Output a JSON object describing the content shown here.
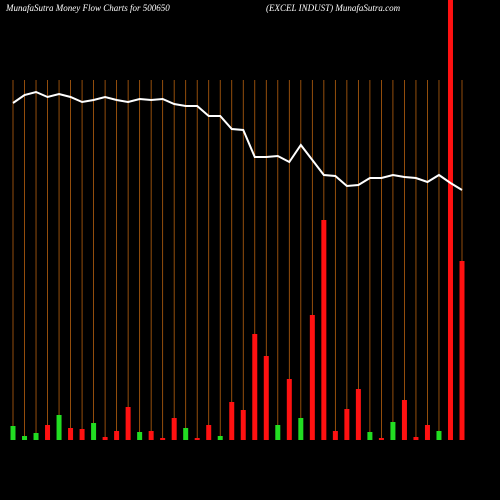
{
  "chart_data": {
    "type": "bar",
    "title": "MunafaSutra  Money Flow  Charts for 500650",
    "subtitle": "(EXCEL  INDUST) MunafaSutra.com",
    "categories": [
      null,
      null,
      null,
      null,
      null,
      null,
      null,
      null,
      null,
      null,
      null,
      null,
      null,
      null,
      null,
      null,
      null,
      null,
      null,
      null,
      null,
      null,
      null,
      null,
      null,
      null,
      null,
      null,
      null,
      null,
      null,
      null,
      null,
      null,
      null,
      null,
      null,
      null,
      null,
      null
    ],
    "series": [
      {
        "colors": [
          "#22dd22",
          "#22dd22",
          "#22dd22",
          "#ff1111",
          "#22dd22",
          "#ff1111",
          "#ff1111",
          "#22dd22",
          "#ff1111",
          "#ff1111",
          "#ff1111",
          "#22dd22",
          "#ff1111",
          "#ff1111",
          "#ff1111",
          "#22dd22",
          "#ff1111",
          "#ff1111",
          "#22dd22",
          "#ff1111",
          "#ff1111",
          "#ff1111",
          "#ff1111",
          "#22dd22",
          "#ff1111",
          "#22dd22",
          "#ff1111",
          "#ff1111",
          "#ff1111",
          "#ff1111",
          "#ff1111",
          "#22dd22",
          "#ff1111",
          "#22dd22",
          "#ff1111",
          "#ff1111",
          "#ff1111",
          "#22dd22",
          "#ff1111",
          "#ff1111"
        ],
        "values": [
          14,
          4,
          7,
          15,
          25,
          12,
          11,
          17,
          3,
          9,
          33,
          8,
          9,
          2,
          22,
          12,
          2,
          15,
          4,
          38,
          30,
          106,
          84,
          15,
          61,
          22,
          125,
          220,
          9,
          31,
          51,
          8,
          2,
          18,
          40,
          3,
          15,
          9,
          440,
          179
        ]
      },
      {
        "type": "line",
        "color": "#ffffff",
        "values": [
          337,
          345,
          348,
          343,
          346,
          343,
          338,
          340,
          343,
          340,
          338,
          341,
          340,
          341,
          336,
          334,
          334,
          324,
          324,
          311,
          310,
          283,
          283,
          284,
          278,
          295,
          280,
          265,
          264,
          254,
          255,
          262,
          262,
          265,
          263,
          262,
          258,
          265,
          257,
          250
        ]
      }
    ],
    "ylim": [
      0,
      440
    ],
    "grid": true,
    "grid_color": "#b8610f"
  }
}
